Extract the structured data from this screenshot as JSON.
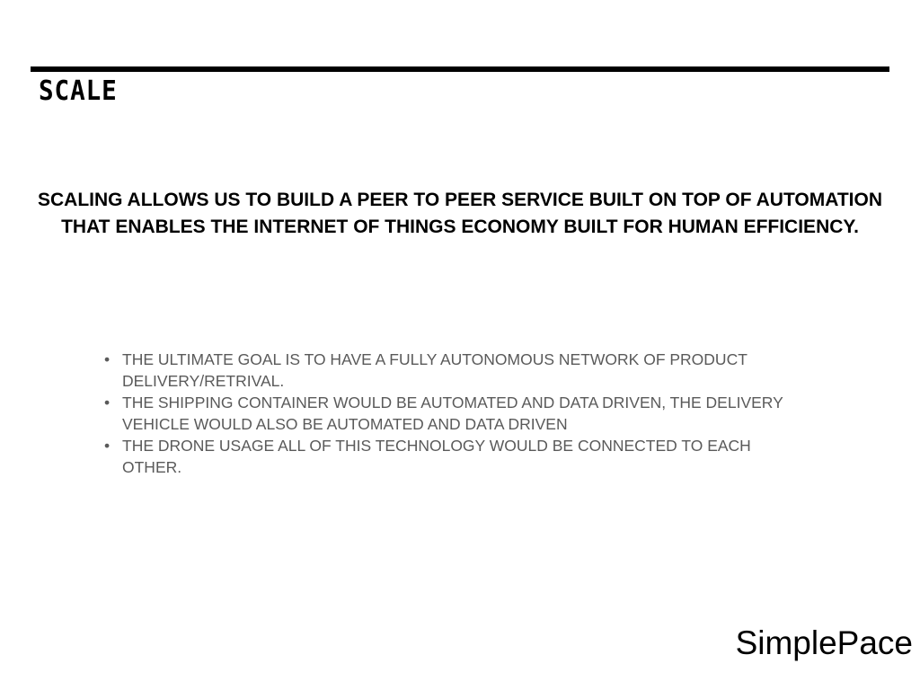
{
  "slide": {
    "title": "SCALE",
    "statement": "SCALING ALLOWS US TO BUILD A PEER TO PEER SERVICE BUILT ON TOP OF AUTOMATION THAT ENABLES THE INTERNET OF THINGS ECONOMY BUILT FOR HUMAN EFFICIENCY.",
    "bullets": [
      {
        "text": "THE ULTIMATE GOAL IS TO HAVE A FULLY AUTONOMOUS NETWORK OF PRODUCT DELIVERY/RETRIVAL."
      },
      {
        "text": "THE SHIPPING CONTAINER WOULD BE AUTOMATED AND DATA DRIVEN, THE DELIVERY VEHICLE WOULD ALSO BE AUTOMATED AND DATA DRIVEN"
      },
      {
        "text": "THE DRONE USAGE ALL OF THIS TECHNOLOGY WOULD BE CONNECTED TO EACH OTHER."
      }
    ],
    "bullet_glyph": "•",
    "brand": "SimplePace"
  },
  "colors": {
    "rule": "#000000",
    "bullet_text": "#5a5a5a",
    "background": "#ffffff"
  }
}
